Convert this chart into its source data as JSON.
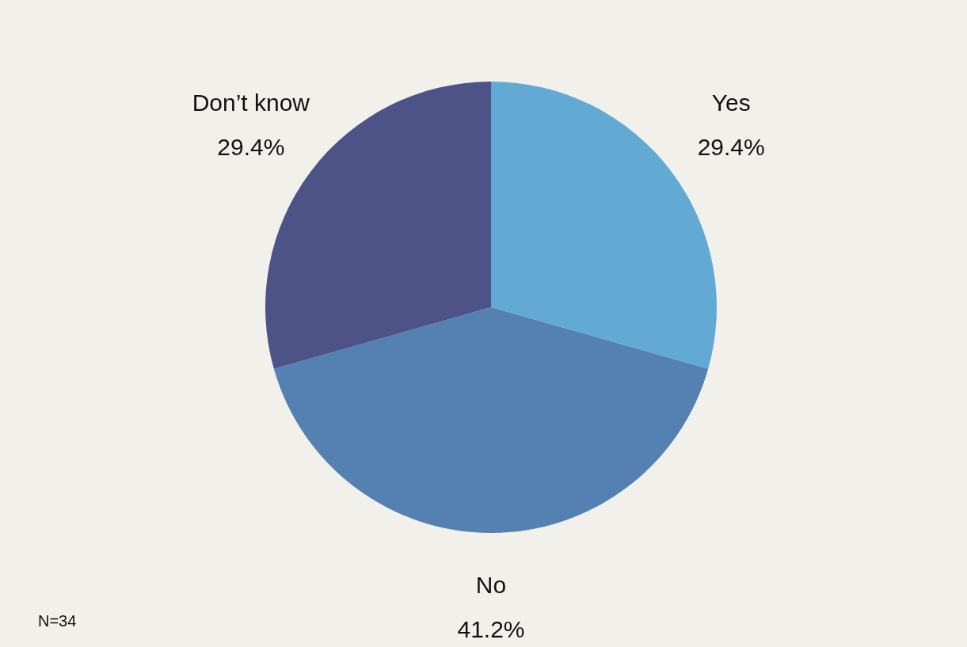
{
  "chart_data": {
    "type": "pie",
    "categories": [
      "Yes",
      "No",
      "Don’t know"
    ],
    "values": [
      29.4,
      41.2,
      29.4
    ],
    "value_labels": [
      "29.4%",
      "41.2%",
      "29.4%"
    ],
    "colors": [
      "#62aad4",
      "#5480b2",
      "#4d5387"
    ],
    "annotations": [
      "N=34"
    ]
  }
}
